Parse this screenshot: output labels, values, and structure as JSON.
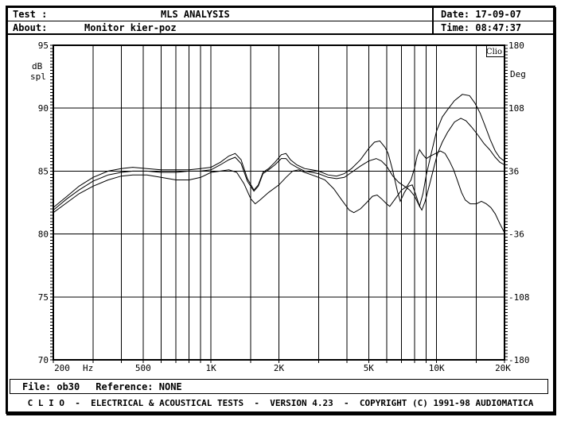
{
  "colors": {
    "foreground": "#000000",
    "background": "#ffffff"
  },
  "header": {
    "test_label": "Test :",
    "title": "MLS ANALYSIS",
    "date_label": "Date:",
    "date_value": "17-09-07",
    "about_label": "About:",
    "about_value": "Monitor kier-poz",
    "time_label": "Time:",
    "time_value": "08:47:37"
  },
  "footer": {
    "file_label": "File:",
    "file_value": "ob30",
    "reference_label": "Reference:",
    "reference_value": "NONE",
    "status": "C L I O  -  ELECTRICAL & ACOUSTICAL TESTS  -  VERSION 4.23  -  COPYRIGHT (C) 1991-98 AUDIOMATICA"
  },
  "chart_data": {
    "type": "line",
    "title": "MLS ANALYSIS frequency response",
    "logo": "Clio",
    "grid": true,
    "legend": "none",
    "x_axis": {
      "label": "Hz",
      "scale": "log",
      "min": 200,
      "max": 20000,
      "gridlines": [
        300,
        400,
        500,
        600,
        700,
        800,
        900,
        1000,
        1500,
        2000,
        3000,
        4000,
        5000,
        6000,
        7000,
        8000,
        9000,
        10000,
        15000
      ],
      "tick_labels": [
        {
          "f": 200,
          "label": "200",
          "dx": 11
        },
        {
          "f": 285,
          "label": "Hz",
          "dx": 0
        },
        {
          "f": 500,
          "label": "500",
          "dx": 0
        },
        {
          "f": 1000,
          "label": "1K",
          "dx": 0
        },
        {
          "f": 2000,
          "label": "2K",
          "dx": 0
        },
        {
          "f": 5000,
          "label": "5K",
          "dx": 0
        },
        {
          "f": 10000,
          "label": "10K",
          "dx": 0
        },
        {
          "f": 20000,
          "label": "20K",
          "dx": -2
        }
      ]
    },
    "y_left": {
      "unit_lines": [
        "dB",
        "spl"
      ],
      "min": 70,
      "max": 95,
      "gridlines": [
        90,
        85,
        80,
        75
      ],
      "tick_labels": [
        95,
        90,
        85,
        80,
        75,
        70
      ]
    },
    "y_right": {
      "unit": "Deg",
      "min": -180,
      "max": 180,
      "tick_labels": [
        180,
        108,
        36,
        -36,
        -108,
        -180
      ]
    },
    "series": [
      {
        "name": "curve-1",
        "points": [
          [
            200,
            82.1
          ],
          [
            230,
            83.0
          ],
          [
            260,
            83.8
          ],
          [
            300,
            84.5
          ],
          [
            350,
            85.0
          ],
          [
            400,
            85.2
          ],
          [
            450,
            85.3
          ],
          [
            520,
            85.2
          ],
          [
            600,
            85.1
          ],
          [
            700,
            85.1
          ],
          [
            800,
            85.1
          ],
          [
            900,
            85.2
          ],
          [
            1000,
            85.3
          ],
          [
            1100,
            85.7
          ],
          [
            1200,
            86.2
          ],
          [
            1280,
            86.4
          ],
          [
            1360,
            85.9
          ],
          [
            1450,
            84.4
          ],
          [
            1550,
            83.5
          ],
          [
            1620,
            83.9
          ],
          [
            1700,
            84.9
          ],
          [
            1800,
            85.2
          ],
          [
            1920,
            85.7
          ],
          [
            2050,
            86.3
          ],
          [
            2150,
            86.4
          ],
          [
            2250,
            85.9
          ],
          [
            2400,
            85.5
          ],
          [
            2600,
            85.2
          ],
          [
            2800,
            85.1
          ],
          [
            3000,
            85.0
          ],
          [
            3300,
            84.7
          ],
          [
            3600,
            84.6
          ],
          [
            3900,
            84.8
          ],
          [
            4200,
            85.2
          ],
          [
            4600,
            85.9
          ],
          [
            5000,
            86.8
          ],
          [
            5300,
            87.3
          ],
          [
            5600,
            87.4
          ],
          [
            5900,
            86.9
          ],
          [
            6100,
            86.4
          ],
          [
            6400,
            85.0
          ],
          [
            6700,
            83.4
          ],
          [
            6900,
            82.6
          ],
          [
            7200,
            83.3
          ],
          [
            7500,
            83.8
          ],
          [
            7800,
            83.9
          ],
          [
            8100,
            83.1
          ],
          [
            8400,
            82.2
          ],
          [
            8700,
            83.2
          ],
          [
            9000,
            84.7
          ],
          [
            9500,
            86.5
          ],
          [
            10000,
            88.2
          ],
          [
            10600,
            89.3
          ],
          [
            11200,
            89.9
          ],
          [
            12000,
            90.6
          ],
          [
            13000,
            91.1
          ],
          [
            14000,
            91.0
          ],
          [
            14800,
            90.4
          ],
          [
            15600,
            89.6
          ],
          [
            16400,
            88.6
          ],
          [
            17300,
            87.5
          ],
          [
            18200,
            86.6
          ],
          [
            19000,
            86.1
          ],
          [
            19600,
            85.9
          ],
          [
            20000,
            85.8
          ]
        ]
      },
      {
        "name": "curve-2",
        "points": [
          [
            200,
            81.9
          ],
          [
            230,
            82.8
          ],
          [
            260,
            83.5
          ],
          [
            300,
            84.2
          ],
          [
            350,
            84.7
          ],
          [
            400,
            84.9
          ],
          [
            450,
            85.0
          ],
          [
            520,
            85.0
          ],
          [
            600,
            84.9
          ],
          [
            700,
            84.9
          ],
          [
            800,
            85.0
          ],
          [
            900,
            85.0
          ],
          [
            1000,
            85.1
          ],
          [
            1100,
            85.5
          ],
          [
            1200,
            85.9
          ],
          [
            1280,
            86.1
          ],
          [
            1360,
            85.6
          ],
          [
            1450,
            84.2
          ],
          [
            1550,
            83.4
          ],
          [
            1620,
            83.8
          ],
          [
            1700,
            84.8
          ],
          [
            1800,
            85.1
          ],
          [
            1920,
            85.5
          ],
          [
            2050,
            86.0
          ],
          [
            2150,
            86.0
          ],
          [
            2250,
            85.6
          ],
          [
            2400,
            85.3
          ],
          [
            2600,
            85.0
          ],
          [
            2800,
            84.9
          ],
          [
            3000,
            84.8
          ],
          [
            3300,
            84.5
          ],
          [
            3600,
            84.4
          ],
          [
            3900,
            84.5
          ],
          [
            4200,
            84.9
          ],
          [
            4600,
            85.4
          ],
          [
            5000,
            85.8
          ],
          [
            5400,
            86.0
          ],
          [
            5700,
            85.8
          ],
          [
            6000,
            85.4
          ],
          [
            6400,
            84.6
          ],
          [
            6800,
            84.1
          ],
          [
            7200,
            83.8
          ],
          [
            7600,
            83.5
          ],
          [
            8000,
            83.0
          ],
          [
            8300,
            82.4
          ],
          [
            8600,
            81.9
          ],
          [
            8900,
            82.6
          ],
          [
            9300,
            83.9
          ],
          [
            9700,
            85.2
          ],
          [
            10100,
            86.4
          ],
          [
            10600,
            87.3
          ],
          [
            11200,
            88.1
          ],
          [
            12000,
            88.9
          ],
          [
            12800,
            89.2
          ],
          [
            13500,
            89.0
          ],
          [
            14300,
            88.5
          ],
          [
            15200,
            87.9
          ],
          [
            16200,
            87.2
          ],
          [
            17200,
            86.7
          ],
          [
            18200,
            86.1
          ],
          [
            19100,
            85.7
          ],
          [
            20000,
            85.5
          ]
        ]
      },
      {
        "name": "curve-3",
        "points": [
          [
            200,
            81.7
          ],
          [
            230,
            82.5
          ],
          [
            260,
            83.2
          ],
          [
            300,
            83.8
          ],
          [
            350,
            84.3
          ],
          [
            400,
            84.6
          ],
          [
            450,
            84.7
          ],
          [
            520,
            84.7
          ],
          [
            600,
            84.5
          ],
          [
            700,
            84.3
          ],
          [
            800,
            84.3
          ],
          [
            900,
            84.5
          ],
          [
            1000,
            84.9
          ],
          [
            1100,
            85.0
          ],
          [
            1200,
            85.1
          ],
          [
            1300,
            84.9
          ],
          [
            1400,
            84.0
          ],
          [
            1500,
            82.8
          ],
          [
            1570,
            82.4
          ],
          [
            1650,
            82.7
          ],
          [
            1800,
            83.3
          ],
          [
            2000,
            83.9
          ],
          [
            2150,
            84.5
          ],
          [
            2300,
            85.0
          ],
          [
            2450,
            85.1
          ],
          [
            2600,
            84.9
          ],
          [
            2800,
            84.7
          ],
          [
            3000,
            84.5
          ],
          [
            3200,
            84.3
          ],
          [
            3500,
            83.6
          ],
          [
            3800,
            82.7
          ],
          [
            4100,
            81.9
          ],
          [
            4300,
            81.7
          ],
          [
            4600,
            82.0
          ],
          [
            4900,
            82.5
          ],
          [
            5200,
            83.0
          ],
          [
            5450,
            83.1
          ],
          [
            5700,
            82.8
          ],
          [
            6000,
            82.4
          ],
          [
            6200,
            82.2
          ],
          [
            6500,
            82.7
          ],
          [
            7000,
            83.5
          ],
          [
            7400,
            83.8
          ],
          [
            7700,
            84.3
          ],
          [
            8000,
            85.3
          ],
          [
            8200,
            86.2
          ],
          [
            8400,
            86.7
          ],
          [
            8700,
            86.3
          ],
          [
            9000,
            86.0
          ],
          [
            9400,
            86.2
          ],
          [
            9900,
            86.4
          ],
          [
            10400,
            86.6
          ],
          [
            10900,
            86.4
          ],
          [
            11400,
            85.8
          ],
          [
            11900,
            85.1
          ],
          [
            12400,
            84.2
          ],
          [
            12900,
            83.3
          ],
          [
            13400,
            82.7
          ],
          [
            14100,
            82.4
          ],
          [
            15000,
            82.4
          ],
          [
            15800,
            82.6
          ],
          [
            16600,
            82.4
          ],
          [
            17400,
            82.1
          ],
          [
            18200,
            81.6
          ],
          [
            19100,
            80.8
          ],
          [
            20000,
            80.1
          ]
        ]
      }
    ]
  }
}
